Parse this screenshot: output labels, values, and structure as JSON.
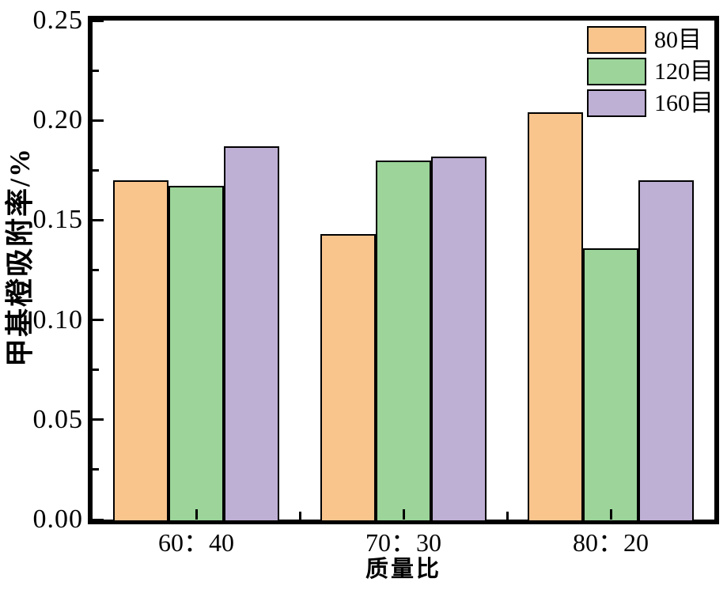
{
  "chart_data": {
    "type": "bar",
    "title": "",
    "xlabel": "质量比",
    "ylabel": "甲基橙吸附率/%",
    "categories": [
      "60：40",
      "70：30",
      "80：20"
    ],
    "series": [
      {
        "name": "80目",
        "color": "#FAC48D",
        "values": [
          0.17,
          0.143,
          0.204
        ]
      },
      {
        "name": "120目",
        "color": "#9CD49A",
        "values": [
          0.167,
          0.18,
          0.136
        ]
      },
      {
        "name": "160目",
        "color": "#BEAFD4",
        "values": [
          0.187,
          0.182,
          0.17
        ]
      }
    ],
    "ylim": [
      0,
      0.25
    ],
    "ytick_step": 0.05,
    "yminor_step": 0.025,
    "ytick_labels": [
      "0.00",
      "0.05",
      "0.10",
      "0.15",
      "0.20",
      "0.25"
    ],
    "bar_edge_color": "#000000",
    "frame_color": "#000000",
    "legend_position": "top-right-inside",
    "grid": false
  }
}
